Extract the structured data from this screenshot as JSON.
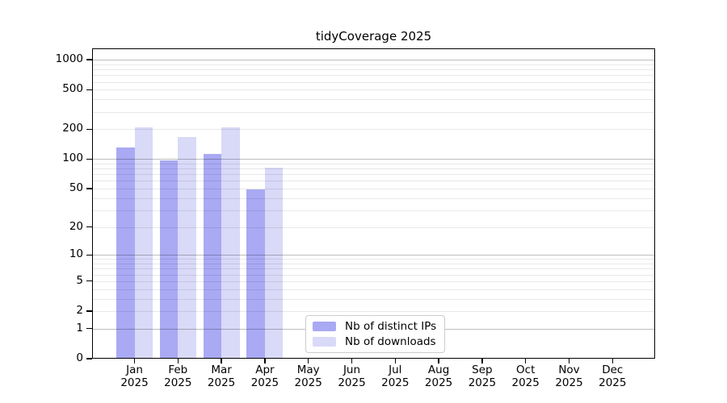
{
  "chart_data": {
    "type": "bar",
    "title": "tidyCoverage 2025",
    "year_label": "2025",
    "categories": [
      "Jan",
      "Feb",
      "Mar",
      "Apr",
      "May",
      "Jun",
      "Jul",
      "Aug",
      "Sep",
      "Oct",
      "Nov",
      "Dec"
    ],
    "series": [
      {
        "name": "Nb of distinct IPs",
        "color": "#a9a9f4",
        "values": [
          130,
          96,
          113,
          49,
          null,
          null,
          null,
          null,
          null,
          null,
          null,
          null
        ]
      },
      {
        "name": "Nb of downloads",
        "color": "#d9d9f8",
        "values": [
          208,
          166,
          208,
          81,
          null,
          null,
          null,
          null,
          null,
          null,
          null,
          null
        ]
      }
    ],
    "xlabel": "",
    "ylabel": "",
    "y_axis": {
      "scale": "symlog",
      "tick_values": [
        0,
        1,
        2,
        5,
        10,
        20,
        50,
        100,
        200,
        500,
        1000
      ],
      "max": 1300,
      "major_grid_values": [
        1,
        10,
        100,
        1000
      ],
      "minor_grid_values": [
        2,
        3,
        4,
        5,
        6,
        7,
        8,
        9,
        20,
        30,
        40,
        50,
        60,
        70,
        80,
        90,
        200,
        300,
        400,
        500,
        600,
        700,
        800,
        900
      ]
    },
    "grid": "on",
    "legend": {
      "position": "bottom-center-inside",
      "entries": [
        {
          "label": "Nb of distinct IPs",
          "color": "#a9a9f4"
        },
        {
          "label": "Nb of downloads",
          "color": "#d9d9f8"
        }
      ]
    },
    "colors": {
      "major_gridline": "rgba(0,0,0,0.26)",
      "minor_gridline": "rgba(0,0,0,0.09)",
      "axis": "#000000"
    }
  }
}
